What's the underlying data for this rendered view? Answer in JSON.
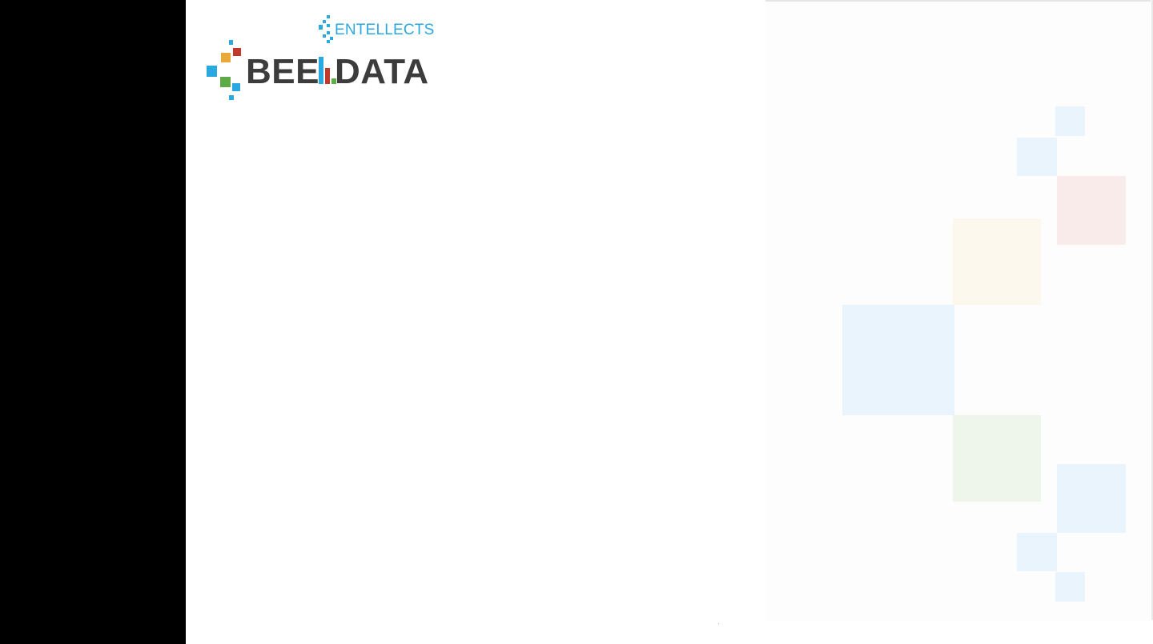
{
  "logo": {
    "subtitle": "ENTELLECTS",
    "brand_left": "BEE",
    "brand_right": "DATA",
    "colors": {
      "blue": "#2aa9e0",
      "red": "#c0392b",
      "yellow": "#e8a93a",
      "green": "#5cab46",
      "text": "#3c3c3c"
    }
  },
  "decoration": {
    "colors": {
      "light_blue": "#e9f4fd",
      "light_red": "#f9ebe9",
      "light_yellow": "#fdf8ee",
      "light_green": "#eef6ec"
    }
  }
}
